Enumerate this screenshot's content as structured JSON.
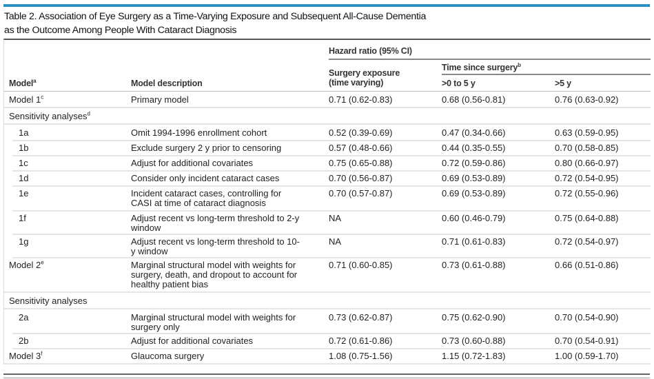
{
  "title_line1": "Table 2. Association of Eye Surgery as a Time-Varying Exposure and Subsequent All-Cause Dementia",
  "title_line2": "as the Outcome Among People With Cataract Diagnosis",
  "accent_color": "#2a8fc4",
  "header": {
    "model": "Model",
    "model_sup": "a",
    "description": "Model description",
    "hazard_ratio": "Hazard ratio (95% CI)",
    "surgery_exposure_1": "Surgery exposure",
    "surgery_exposure_2": "(time varying)",
    "time_since": "Time since surgery",
    "time_since_sup": "b",
    "early": ">0 to 5 y",
    "late": ">5 y"
  },
  "rows": [
    {
      "model": "Model 1",
      "sup": "c",
      "desc": "Primary model",
      "exposure": "0.71 (0.62-0.83)",
      "early": "0.68 (0.56-0.81)",
      "late": "0.76 (0.63-0.92)"
    },
    {
      "model": "Sensitivity analyses",
      "sup": "d",
      "section": true
    },
    {
      "model": "1a",
      "desc": "Omit 1994-1996 enrollment cohort",
      "exposure": "0.52 (0.39-0.69)",
      "early": "0.47 (0.34-0.66)",
      "late": "0.63 (0.59-0.95)"
    },
    {
      "model": "1b",
      "desc": "Exclude surgery 2 y prior to censoring",
      "exposure": "0.57 (0.48-0.66)",
      "early": "0.44 (0.35-0.55)",
      "late": "0.70 (0.58-0.85)"
    },
    {
      "model": "1c",
      "desc": "Adjust for additional covariates",
      "exposure": "0.75 (0.65-0.88)",
      "early": "0.72 (0.59-0.86)",
      "late": "0.80 (0.66-0.97)"
    },
    {
      "model": "1d",
      "desc": "Consider only incident cataract cases",
      "exposure": "0.70 (0.56-0.87)",
      "early": "0.69 (0.53-0.89)",
      "late": "0.72 (0.54-0.95)"
    },
    {
      "model": "1e",
      "desc": "Incident cataract cases, controlling for CASI at time of cataract diagnosis",
      "exposure": "0.70 (0.57-0.87)",
      "early": "0.69 (0.53-0.89)",
      "late": "0.72 (0.55-0.96)"
    },
    {
      "model": "1f",
      "desc": "Adjust recent vs long-term threshold to 2-y window",
      "exposure": "NA",
      "early": "0.60 (0.46-0.79)",
      "late": "0.75 (0.64-0.88)"
    },
    {
      "model": "1g",
      "desc": "Adjust recent vs long-term threshold to 10-y window",
      "exposure": "NA",
      "early": "0.71 (0.61-0.83)",
      "late": "0.72 (0.54-0.97)"
    },
    {
      "model": "Model 2",
      "sup": "e",
      "desc": "Marginal structural model with weights for surgery, death, and dropout to account for healthy patient bias",
      "exposure": "0.71 (0.60-0.85)",
      "early": "0.73 (0.61-0.88)",
      "late": "0.66 (0.51-0.86)"
    },
    {
      "model": "Sensitivity analyses",
      "section": true
    },
    {
      "model": "2a",
      "desc": "Marginal structural model with weights for surgery only",
      "exposure": "0.73 (0.62-0.87)",
      "early": "0.75 (0.62-0.90)",
      "late": "0.70 (0.54-0.90)"
    },
    {
      "model": "2b",
      "desc": "Adjust for additional covariates",
      "exposure": "0.72 (0.61-0.86)",
      "early": "0.73 (0.60-0.88)",
      "late": "0.70 (0.54-0.91)"
    },
    {
      "model": "Model 3",
      "sup": "f",
      "desc": "Glaucoma surgery",
      "exposure": "1.08 (0.75-1.56)",
      "early": "1.15 (0.72-1.83)",
      "late": "1.00 (0.59-1.70)"
    }
  ]
}
